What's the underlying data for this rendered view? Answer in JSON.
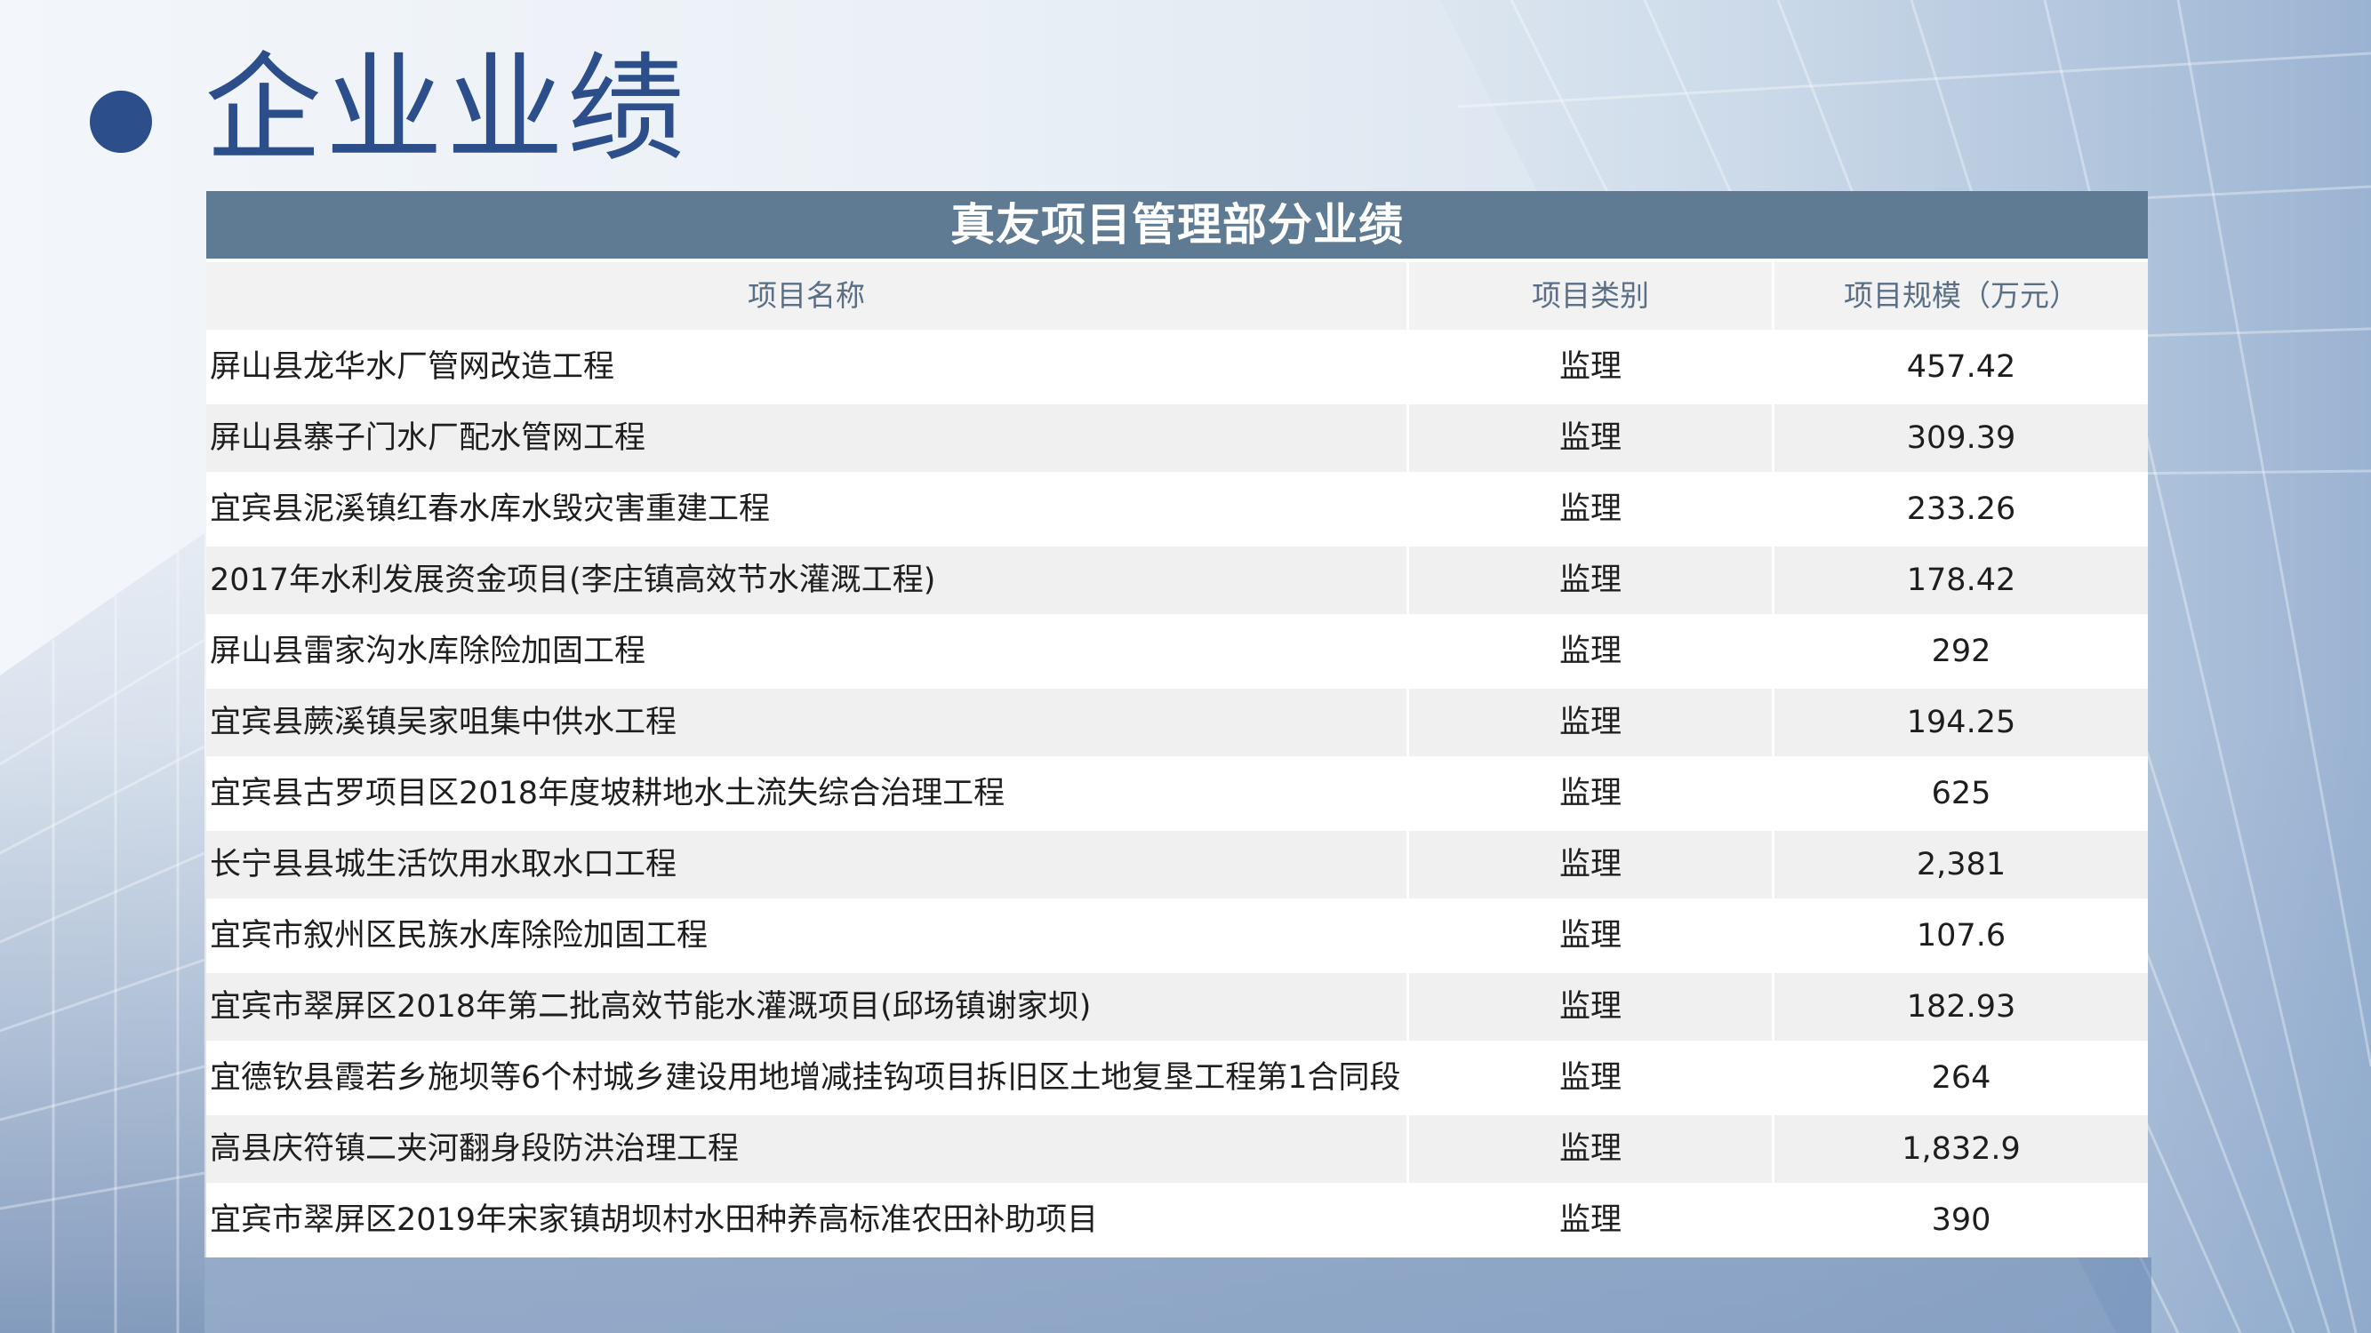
{
  "page": {
    "title": "企业业绩"
  },
  "table": {
    "title": "真友项目管理部分业绩",
    "headers": [
      "项目名称",
      "项目类别",
      "项目规模（万元）"
    ],
    "rows": [
      [
        "屏山县龙华水厂管网改造工程",
        "监理",
        "457.42"
      ],
      [
        "屏山县寨子门水厂配水管网工程",
        "监理",
        "309.39"
      ],
      [
        "宜宾县泥溪镇红春水库水毁灾害重建工程",
        "监理",
        "233.26"
      ],
      [
        "2017年水利发展资金项目(李庄镇高效节水灌溉工程)",
        "监理",
        "178.42"
      ],
      [
        "屏山县雷家沟水库除险加固工程",
        "监理",
        "292"
      ],
      [
        "宜宾县蕨溪镇吴家咀集中供水工程",
        "监理",
        "194.25"
      ],
      [
        "宜宾县古罗项目区2018年度坡耕地水土流失综合治理工程",
        "监理",
        "625"
      ],
      [
        "长宁县县城生活饮用水取水口工程",
        "监理",
        "2,381"
      ],
      [
        "宜宾市叙州区民族水库除险加固工程",
        "监理",
        "107.6"
      ],
      [
        "宜宾市翠屏区2018年第二批高效节能水灌溉项目(邱场镇谢家坝)",
        "监理",
        "182.93"
      ],
      [
        "宜德钦县霞若乡施坝等6个村城乡建设用地增减挂钩项目拆旧区土地复垦工程第1合同段",
        "监理",
        "264"
      ],
      [
        "高县庆符镇二夹河翻身段防洪治理工程",
        "监理",
        "1,832.9"
      ],
      [
        "宜宾市翠屏区2019年宋家镇胡坝村水田种养高标准农田补助项目",
        "监理",
        "390"
      ]
    ]
  },
  "colors": {
    "accent": "#2c4f8c",
    "table_title_bg": "#5f7a93",
    "header_text": "#5a6f86"
  }
}
